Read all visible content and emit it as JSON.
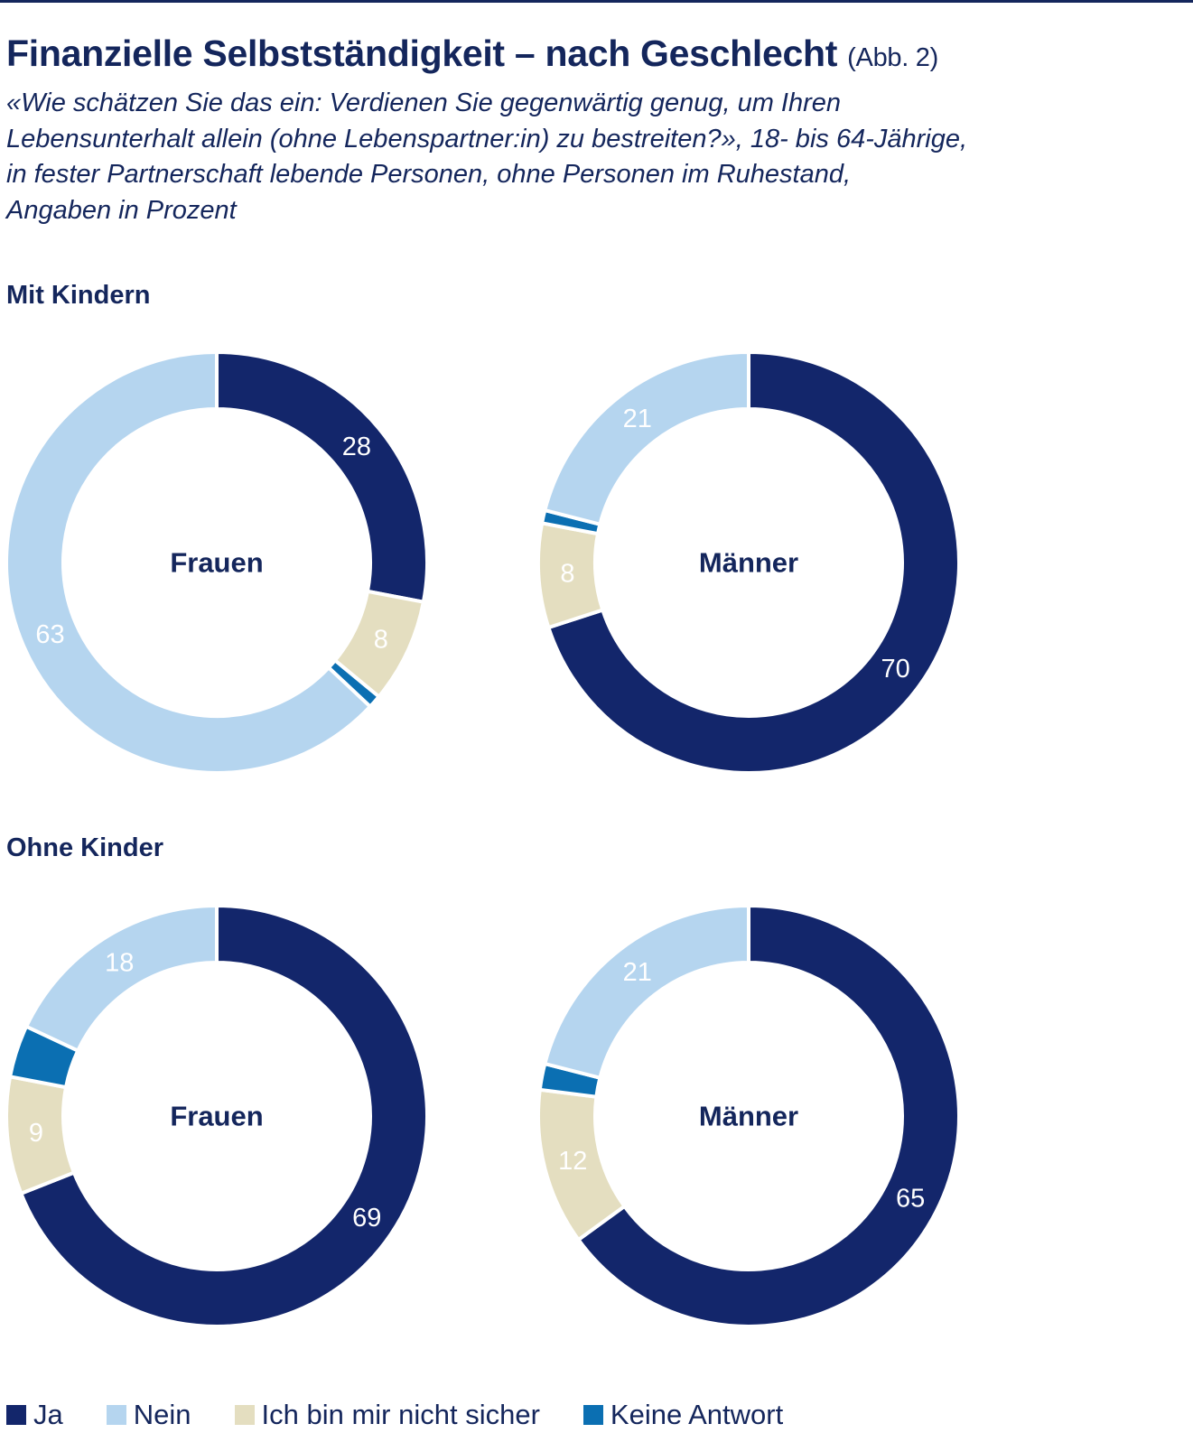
{
  "header": {
    "title": "Finanzielle Selbstständigkeit – nach Geschlecht",
    "figure_ref": "(Abb. 2)",
    "subtitle_lines": [
      "«Wie schätzen Sie das ein: Verdienen Sie gegenwärtig genug, um Ihren",
      "Lebensunterhalt allein (ohne Lebenspartner:in) zu bestreiten?», 18- bis 64-Jährige,",
      "in fester Partnerschaft lebende Personen, ohne Personen im Ruhestand,",
      "Angaben in Prozent"
    ]
  },
  "sections": {
    "with_children": "Mit Kindern",
    "without_children": "Ohne Kinder"
  },
  "colors": {
    "Ja": "#13266b",
    "Nein": "#b5d5ef",
    "Ich bin mir nicht sicher": "#e4dec0",
    "Keine Antwort": "#0b6fb2",
    "text": "#14265c"
  },
  "legend": [
    "Ja",
    "Nein",
    "Ich bin mir nicht sicher",
    "Keine Antwort"
  ],
  "chart_data": [
    {
      "type": "pie",
      "group": "Mit Kindern",
      "center_label": "Frauen",
      "categories": [
        "Ja",
        "Ich bin mir nicht sicher",
        "Keine Antwort",
        "Nein"
      ],
      "values": [
        28,
        8,
        1,
        63
      ],
      "labels": [
        "28",
        "8",
        "",
        "63"
      ]
    },
    {
      "type": "pie",
      "group": "Mit Kindern",
      "center_label": "Männer",
      "categories": [
        "Ja",
        "Ich bin mir nicht sicher",
        "Keine Antwort",
        "Nein"
      ],
      "values": [
        70,
        8,
        1,
        21
      ],
      "labels": [
        "70",
        "8",
        "",
        "21"
      ]
    },
    {
      "type": "pie",
      "group": "Ohne Kinder",
      "center_label": "Frauen",
      "categories": [
        "Ja",
        "Ich bin mir nicht sicher",
        "Keine Antwort",
        "Nein"
      ],
      "values": [
        69,
        9,
        4,
        18
      ],
      "labels": [
        "69",
        "9",
        "",
        "18"
      ]
    },
    {
      "type": "pie",
      "group": "Ohne Kinder",
      "center_label": "Männer",
      "categories": [
        "Ja",
        "Ich bin mir nicht sicher",
        "Keine Antwort",
        "Nein"
      ],
      "values": [
        65,
        12,
        2,
        21
      ],
      "labels": [
        "65",
        "12",
        "",
        "21"
      ]
    }
  ]
}
